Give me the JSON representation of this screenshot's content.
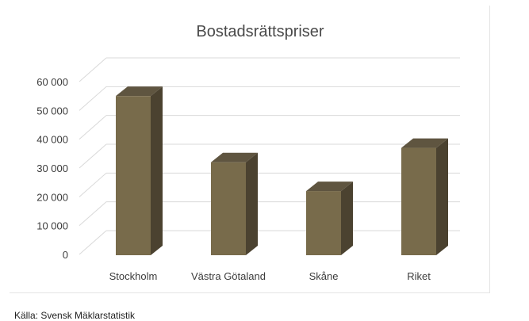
{
  "chart_data": {
    "type": "bar",
    "title": "Bostadsrättspriser",
    "categories": [
      "Stockholm",
      "Västra Götaland",
      "Skåne",
      "Riket"
    ],
    "values": [
      55000,
      32000,
      22000,
      37000
    ],
    "yticks": [
      "0",
      "10 000",
      "20 000",
      "30 000",
      "40 000",
      "50 000",
      "60 000"
    ],
    "ylim": [
      0,
      60000
    ],
    "grid": true,
    "legend": "none",
    "style": "3d-column",
    "colors": {
      "bar_front": "#786b4b",
      "bar_side": "#4b4230",
      "bar_top": "#5f5540",
      "grid": "#d9d9d9"
    }
  },
  "source_text": "Källa: Svensk Mäklarstatistik"
}
